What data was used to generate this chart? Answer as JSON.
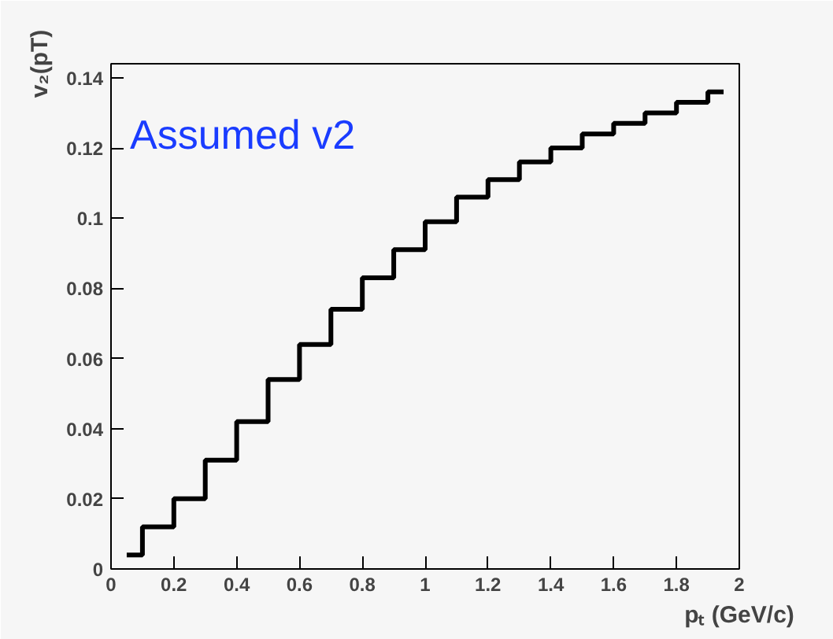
{
  "chart_data": {
    "type": "step",
    "xlabel": "pₜ (GeV/c)",
    "ylabel": "v₂(pT)",
    "annotations": [
      "Assumed v2"
    ],
    "x": [
      0.05,
      0.15,
      0.25,
      0.35,
      0.45,
      0.55,
      0.65,
      0.75,
      0.85,
      0.95,
      1.05,
      1.15,
      1.25,
      1.35,
      1.45,
      1.55,
      1.65,
      1.75,
      1.85,
      1.95
    ],
    "series": [
      {
        "color": "#000000",
        "values": [
          0.004,
          0.012,
          0.02,
          0.031,
          0.042,
          0.054,
          0.064,
          0.074,
          0.083,
          0.091,
          0.099,
          0.106,
          0.111,
          0.116,
          0.12,
          0.124,
          0.127,
          0.13,
          0.133,
          0.136
        ]
      }
    ],
    "xlim": [
      0,
      2
    ],
    "ylim": [
      0,
      0.144
    ],
    "xticks": [
      0,
      0.2,
      0.4,
      0.6,
      0.8,
      1,
      1.2,
      1.4,
      1.6,
      1.8,
      2
    ],
    "yticks": [
      0,
      0.02,
      0.04,
      0.06,
      0.08,
      0.1,
      0.12,
      0.14
    ],
    "grid": false
  }
}
